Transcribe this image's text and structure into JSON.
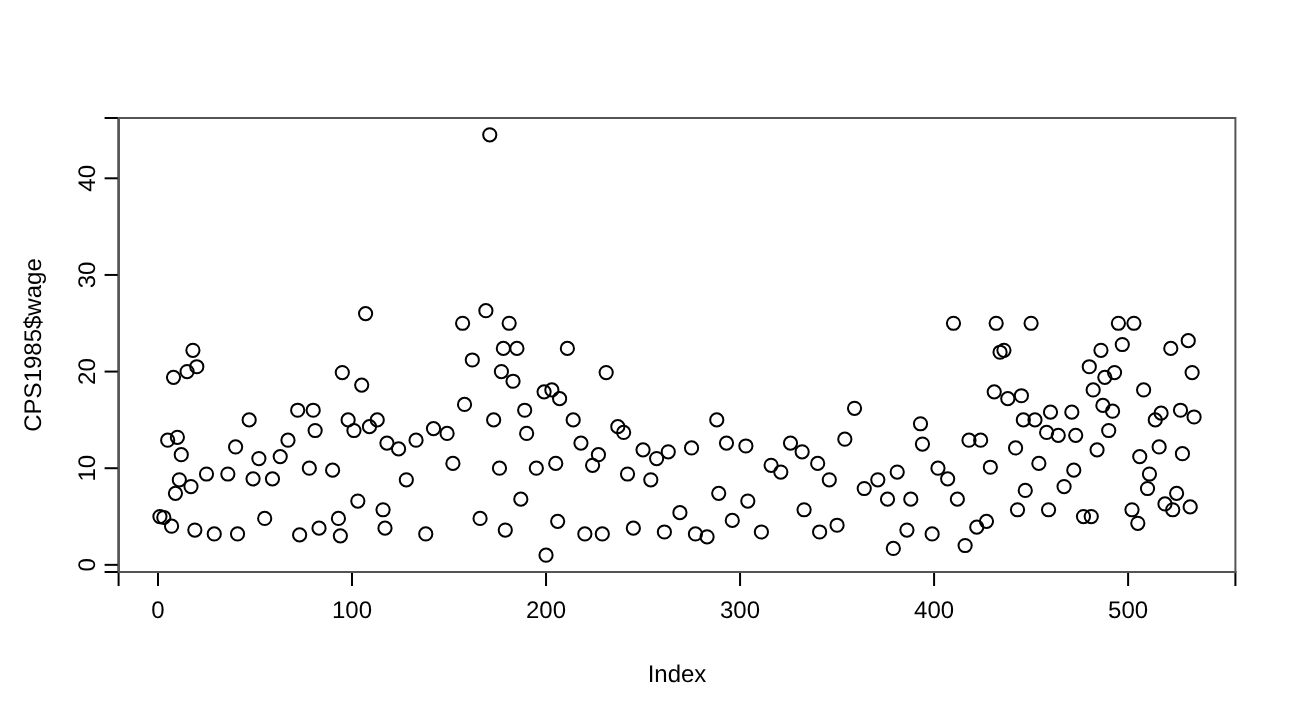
{
  "chart_data": {
    "type": "scatter",
    "xlabel": "Index",
    "ylabel": "CPS1985$wage",
    "marker": "circle",
    "grid": false,
    "xlim": [
      -20.3,
      555.3
    ],
    "ylim": [
      -0.74,
      46.24
    ],
    "xticks": [
      0,
      100,
      200,
      300,
      400,
      500
    ],
    "yticks": [
      0,
      10,
      20,
      30,
      40
    ],
    "series": [
      {
        "color": "#000000",
        "x": [
          1,
          3,
          5,
          7,
          8,
          9,
          10,
          11,
          12,
          15,
          17,
          18,
          19,
          20,
          25,
          29,
          36,
          40,
          41,
          47,
          49,
          52,
          55,
          59,
          63,
          67,
          72,
          73,
          78,
          80,
          81,
          83,
          90,
          93,
          94,
          95,
          98,
          101,
          103,
          105,
          107,
          109,
          113,
          116,
          117,
          118,
          124,
          128,
          133,
          138,
          142,
          149,
          152,
          157,
          158,
          162,
          166,
          169,
          171,
          173,
          176,
          177,
          178,
          179,
          181,
          183,
          185,
          187,
          189,
          190,
          195,
          199,
          200,
          203,
          205,
          206,
          207,
          211,
          214,
          218,
          220,
          224,
          227,
          229,
          231,
          237,
          240,
          242,
          245,
          250,
          254,
          257,
          261,
          263,
          269,
          275,
          277,
          283,
          288,
          289,
          293,
          296,
          303,
          304,
          311,
          316,
          321,
          326,
          332,
          333,
          340,
          341,
          346,
          350,
          354,
          359,
          364,
          371,
          376,
          379,
          381,
          386,
          388,
          393,
          394,
          399,
          402,
          407,
          410,
          412,
          416,
          418,
          422,
          424,
          427,
          429,
          431,
          432,
          434,
          436,
          438,
          442,
          443,
          445,
          446,
          447,
          450,
          452,
          454,
          458,
          459,
          460,
          464,
          467,
          471,
          472,
          473,
          477,
          480,
          481,
          482,
          484,
          486,
          487,
          488,
          490,
          492,
          493,
          495,
          497,
          502,
          503,
          505,
          506,
          508,
          510,
          511,
          514,
          516,
          517,
          519,
          522,
          523,
          525,
          527,
          528,
          531,
          532,
          533,
          534
        ],
        "values": [
          5.0,
          4.9,
          12.9,
          4.0,
          19.4,
          7.4,
          13.2,
          8.8,
          11.4,
          20.0,
          8.1,
          22.2,
          3.6,
          20.5,
          9.4,
          3.2,
          9.4,
          12.2,
          3.2,
          15.0,
          8.9,
          11.0,
          4.8,
          8.9,
          11.2,
          12.9,
          16.0,
          3.1,
          10.0,
          16.0,
          13.9,
          3.8,
          9.8,
          4.8,
          3.0,
          19.9,
          15.0,
          13.9,
          6.6,
          18.6,
          26.0,
          14.3,
          15.0,
          5.7,
          3.8,
          12.6,
          12.0,
          8.8,
          12.9,
          3.2,
          14.1,
          13.6,
          10.5,
          25.0,
          16.6,
          21.2,
          4.8,
          26.3,
          44.5,
          15.0,
          10.0,
          20.0,
          22.4,
          3.6,
          25.0,
          19.0,
          22.4,
          6.8,
          16.0,
          13.6,
          10.0,
          17.9,
          1.0,
          18.1,
          10.5,
          4.5,
          17.2,
          22.4,
          15.0,
          12.6,
          3.2,
          10.3,
          11.4,
          3.2,
          19.9,
          14.3,
          13.7,
          9.4,
          3.8,
          11.9,
          8.8,
          11.0,
          3.4,
          11.7,
          5.4,
          12.1,
          3.2,
          2.9,
          15.0,
          7.4,
          12.6,
          4.6,
          12.3,
          6.6,
          3.4,
          10.3,
          9.6,
          12.6,
          11.7,
          5.7,
          10.5,
          3.4,
          8.8,
          4.1,
          13.0,
          16.2,
          7.9,
          8.8,
          6.8,
          1.7,
          9.6,
          3.6,
          6.8,
          14.6,
          12.5,
          3.2,
          10.0,
          8.9,
          25.0,
          6.8,
          2.0,
          12.9,
          3.9,
          12.9,
          4.5,
          10.1,
          17.9,
          25.0,
          22.0,
          22.2,
          17.2,
          12.1,
          5.7,
          17.5,
          15.0,
          7.7,
          25.0,
          15.0,
          10.5,
          13.7,
          5.7,
          15.8,
          13.4,
          8.1,
          15.8,
          9.8,
          13.4,
          5.0,
          20.5,
          5.0,
          18.1,
          11.9,
          22.2,
          16.5,
          19.4,
          13.9,
          15.9,
          19.9,
          25.0,
          22.8,
          5.7,
          25.0,
          4.3,
          11.2,
          18.1,
          7.9,
          9.4,
          15.0,
          12.2,
          15.7,
          6.3,
          22.4,
          5.7,
          7.4,
          16.0,
          11.5,
          23.2,
          6.0,
          19.9,
          15.3
        ]
      }
    ]
  }
}
